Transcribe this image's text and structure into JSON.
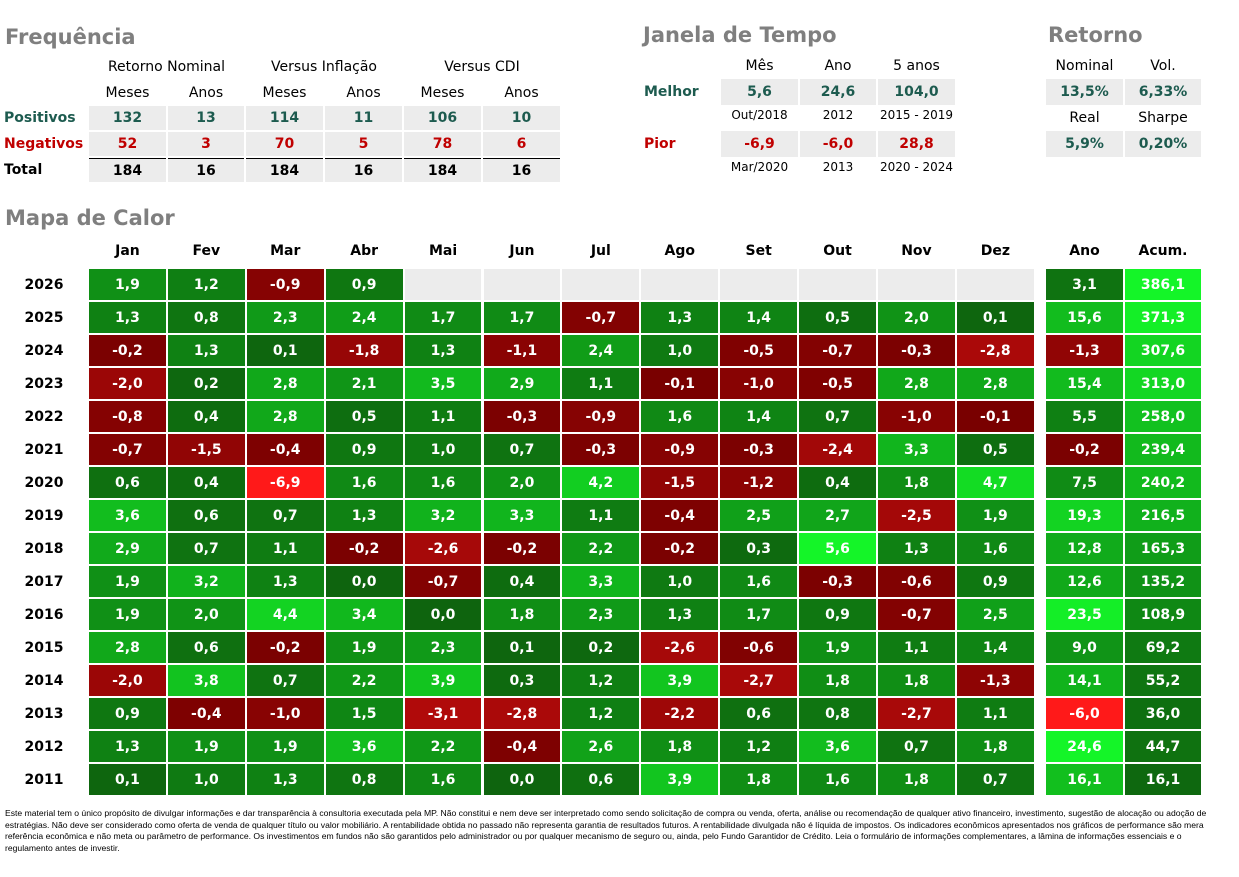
{
  "frequencia": {
    "title": "Frequência",
    "groups": [
      "Retorno Nominal",
      "Versus Inflação",
      "Versus CDI"
    ],
    "subheaders": [
      "Meses",
      "Anos",
      "Meses",
      "Anos",
      "Meses",
      "Anos"
    ],
    "rows": [
      {
        "label": "Positivos",
        "values": [
          "132",
          "13",
          "114",
          "11",
          "106",
          "10"
        ]
      },
      {
        "label": "Negativos",
        "values": [
          "52",
          "3",
          "70",
          "5",
          "78",
          "6"
        ]
      },
      {
        "label": "Total",
        "values": [
          "184",
          "16",
          "184",
          "16",
          "184",
          "16"
        ]
      }
    ]
  },
  "janela": {
    "title": "Janela de Tempo",
    "headers": [
      "Mês",
      "Ano",
      "5 anos"
    ],
    "rows": [
      {
        "label": "Melhor",
        "values": [
          "5,6",
          "24,6",
          "104,0"
        ],
        "periods": [
          "Out/2018",
          "2012",
          "2015 - 2019"
        ]
      },
      {
        "label": "Pior",
        "values": [
          "-6,9",
          "-6,0",
          "28,8"
        ],
        "periods": [
          "Mar/2020",
          "2013",
          "2020 - 2024"
        ]
      }
    ]
  },
  "retorno": {
    "title": "Retorno",
    "items": [
      {
        "label": "Nominal",
        "value": "13,5%"
      },
      {
        "label": "Vol.",
        "value": "6,33%"
      },
      {
        "label": "Real",
        "value": "5,9%"
      },
      {
        "label": "Sharpe",
        "value": "0,20%"
      }
    ]
  },
  "mapa": {
    "title": "Mapa de Calor",
    "months": [
      "Jan",
      "Fev",
      "Mar",
      "Abr",
      "Mai",
      "Jun",
      "Jul",
      "Ago",
      "Set",
      "Out",
      "Nov",
      "Dez"
    ],
    "ano_header": "Ano",
    "acum_header": "Acum.",
    "rows": [
      {
        "year": "2026",
        "values": [
          "1,9",
          "1,2",
          "-0,9",
          "0,9",
          null,
          null,
          null,
          null,
          null,
          null,
          null,
          null
        ],
        "ano": "3,1",
        "acum": "386,1"
      },
      {
        "year": "2025",
        "values": [
          "1,3",
          "0,8",
          "2,3",
          "2,4",
          "1,7",
          "1,7",
          "-0,7",
          "1,3",
          "1,4",
          "0,5",
          "2,0",
          "0,1"
        ],
        "ano": "15,6",
        "acum": "371,3"
      },
      {
        "year": "2024",
        "values": [
          "-0,2",
          "1,3",
          "0,1",
          "-1,8",
          "1,3",
          "-1,1",
          "2,4",
          "1,0",
          "-0,5",
          "-0,7",
          "-0,3",
          "-2,8"
        ],
        "ano": "-1,3",
        "acum": "307,6"
      },
      {
        "year": "2023",
        "values": [
          "-2,0",
          "0,2",
          "2,8",
          "2,1",
          "3,5",
          "2,9",
          "1,1",
          "-0,1",
          "-1,0",
          "-0,5",
          "2,8",
          "2,8"
        ],
        "ano": "15,4",
        "acum": "313,0"
      },
      {
        "year": "2022",
        "values": [
          "-0,8",
          "0,4",
          "2,8",
          "0,5",
          "1,1",
          "-0,3",
          "-0,9",
          "1,6",
          "1,4",
          "0,7",
          "-1,0",
          "-0,1"
        ],
        "ano": "5,5",
        "acum": "258,0"
      },
      {
        "year": "2021",
        "values": [
          "-0,7",
          "-1,5",
          "-0,4",
          "0,9",
          "1,0",
          "0,7",
          "-0,3",
          "-0,9",
          "-0,3",
          "-2,4",
          "3,3",
          "0,5"
        ],
        "ano": "-0,2",
        "acum": "239,4"
      },
      {
        "year": "2020",
        "values": [
          "0,6",
          "0,4",
          "-6,9",
          "1,6",
          "1,6",
          "2,0",
          "4,2",
          "-1,5",
          "-1,2",
          "0,4",
          "1,8",
          "4,7"
        ],
        "ano": "7,5",
        "acum": "240,2"
      },
      {
        "year": "2019",
        "values": [
          "3,6",
          "0,6",
          "0,7",
          "1,3",
          "3,2",
          "3,3",
          "1,1",
          "-0,4",
          "2,5",
          "2,7",
          "-2,5",
          "1,9"
        ],
        "ano": "19,3",
        "acum": "216,5"
      },
      {
        "year": "2018",
        "values": [
          "2,9",
          "0,7",
          "1,1",
          "-0,2",
          "-2,6",
          "-0,2",
          "2,2",
          "-0,2",
          "0,3",
          "5,6",
          "1,3",
          "1,6"
        ],
        "ano": "12,8",
        "acum": "165,3"
      },
      {
        "year": "2017",
        "values": [
          "1,9",
          "3,2",
          "1,3",
          "0,0",
          "-0,7",
          "0,4",
          "3,3",
          "1,0",
          "1,6",
          "-0,3",
          "-0,6",
          "0,9"
        ],
        "ano": "12,6",
        "acum": "135,2"
      },
      {
        "year": "2016",
        "values": [
          "1,9",
          "2,0",
          "4,4",
          "3,4",
          "0,0",
          "1,8",
          "2,3",
          "1,3",
          "1,7",
          "0,9",
          "-0,7",
          "2,5"
        ],
        "ano": "23,5",
        "acum": "108,9"
      },
      {
        "year": "2015",
        "values": [
          "2,8",
          "0,6",
          "-0,2",
          "1,9",
          "2,3",
          "0,1",
          "0,2",
          "-2,6",
          "-0,6",
          "1,9",
          "1,1",
          "1,4"
        ],
        "ano": "9,0",
        "acum": "69,2"
      },
      {
        "year": "2014",
        "values": [
          "-2,0",
          "3,8",
          "0,7",
          "2,2",
          "3,9",
          "0,3",
          "1,2",
          "3,9",
          "-2,7",
          "1,8",
          "1,8",
          "-1,3"
        ],
        "ano": "14,1",
        "acum": "55,2"
      },
      {
        "year": "2013",
        "values": [
          "0,9",
          "-0,4",
          "-1,0",
          "1,5",
          "-3,1",
          "-2,8",
          "1,2",
          "-2,2",
          "0,6",
          "0,8",
          "-2,7",
          "1,1"
        ],
        "ano": "-6,0",
        "acum": "36,0"
      },
      {
        "year": "2012",
        "values": [
          "1,3",
          "1,9",
          "1,9",
          "3,6",
          "2,2",
          "-0,4",
          "2,6",
          "1,8",
          "1,2",
          "3,6",
          "0,7",
          "1,8"
        ],
        "ano": "24,6",
        "acum": "44,7"
      },
      {
        "year": "2011",
        "values": [
          "0,1",
          "1,0",
          "1,3",
          "0,8",
          "1,6",
          "0,0",
          "0,6",
          "3,9",
          "1,8",
          "1,6",
          "1,8",
          "0,7"
        ],
        "ano": "16,1",
        "acum": "16,1"
      }
    ]
  },
  "disclaimer": "Este material tem o único propósito de divulgar informações e dar transparência à consultoria executada pela MP. Não constitui e nem deve ser interpretado como sendo solicitação de compra ou venda, oferta, análise ou recomendação de qualquer ativo financeiro, investimento, sugestão de alocação ou adoção de estratégias. Não deve ser considerado como oferta de venda de qualquer título ou valor mobiliário. A rentabilidade obtida no passado não representa garantia de resultados futuros. A rentabilidade divulgada não é líquida de impostos. Os indicadores econômicos apresentados nos gráficos de performance são mera referência econômica e não meta ou parâmetro de performance. Os investimentos em fundos não são garantidos pelo administrador ou por qualquer mecanismo de seguro ou, ainda, pelo Fundo Garantidor de Crédito. Leia o formulário de informações complementares, a lâmina de informações essenciais e o regulamento antes de investir."
}
